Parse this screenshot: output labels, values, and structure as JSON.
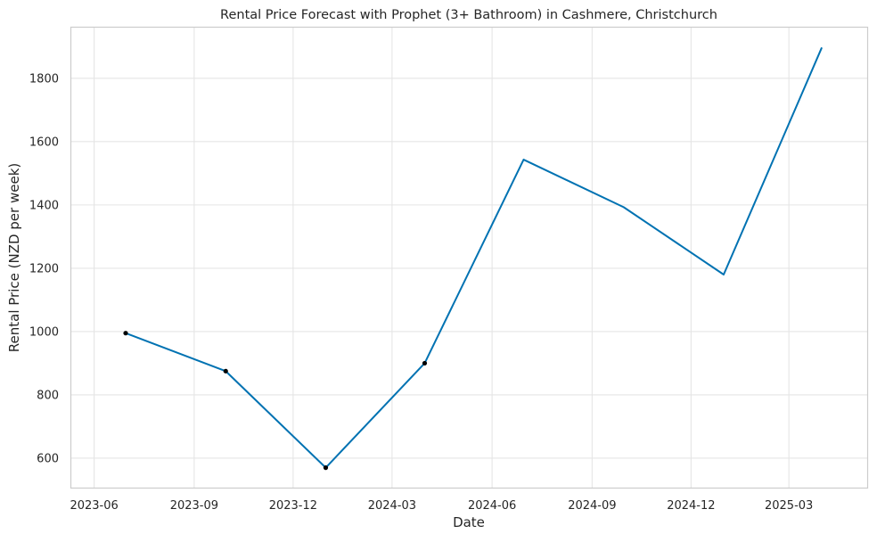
{
  "chart_data": {
    "type": "line",
    "title": "Rental Price Forecast with Prophet (3+ Bathroom) in Cashmere, Christchurch",
    "xlabel": "Date",
    "ylabel": "Rental Price (NZD per week)",
    "x_ticks": [
      "2023-06",
      "2023-09",
      "2023-12",
      "2024-03",
      "2024-06",
      "2024-09",
      "2024-12",
      "2025-03"
    ],
    "y_ticks": [
      600,
      800,
      1000,
      1200,
      1400,
      1600,
      1800
    ],
    "xlim": [
      "2023-05-11",
      "2025-05-12"
    ],
    "ylim": [
      507,
      1960
    ],
    "grid": true,
    "series": [
      {
        "color": "#0072b2",
        "x": [
          "2023-06-30",
          "2023-09-30",
          "2023-12-31",
          "2024-03-31",
          "2024-06-30",
          "2024-09-30",
          "2024-12-31",
          "2025-03-31"
        ],
        "y": [
          995,
          875,
          570,
          900,
          1543,
          1393,
          1180,
          1895
        ]
      }
    ],
    "observed_points": {
      "color": "#000000",
      "x": [
        "2023-06-30",
        "2023-09-30",
        "2023-12-31",
        "2024-03-31"
      ],
      "y": [
        995,
        875,
        570,
        900
      ]
    }
  }
}
